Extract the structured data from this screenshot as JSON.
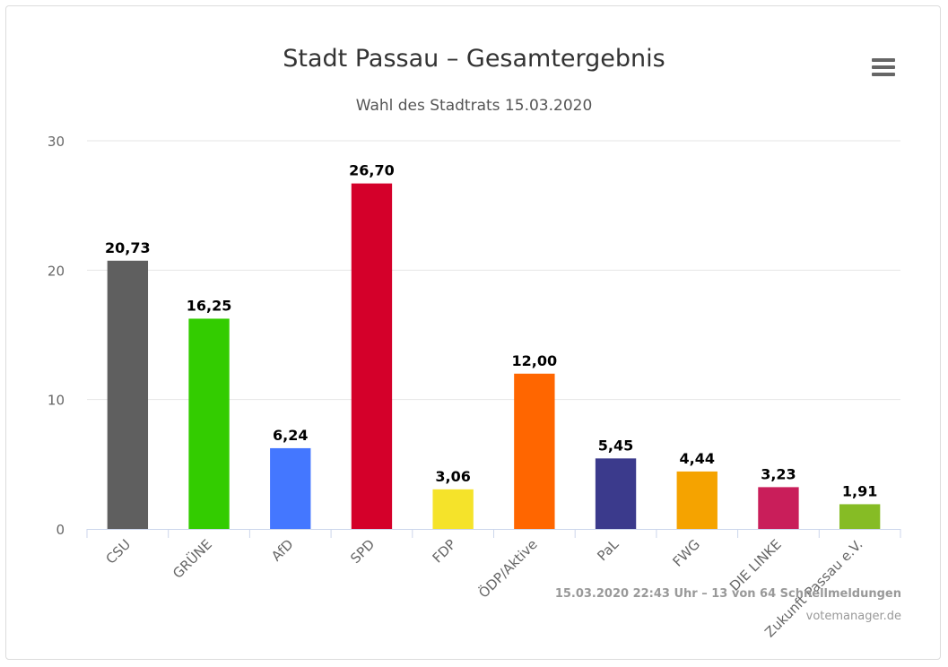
{
  "chart": {
    "title": "Stadt Passau – Gesamtergebnis",
    "subtitle": "Wahl des Stadtrats 15.03.2020",
    "menu_icon": "hamburger-menu-icon",
    "credits_line1": "15.03.2020 22:43 Uhr – 13 von 64 Schnellmeldungen",
    "credits_line2": "votemanager.de"
  },
  "chart_data": {
    "type": "bar",
    "title": "Stadt Passau – Gesamtergebnis",
    "subtitle": "Wahl des Stadtrats 15.03.2020",
    "xlabel": "",
    "ylabel": "",
    "ylim": [
      0,
      30
    ],
    "yticks": [
      0,
      10,
      20,
      30
    ],
    "grid": true,
    "legend": "none",
    "categories": [
      "CSU",
      "GRÜNE",
      "AfD",
      "SPD",
      "FDP",
      "ÖDP/Aktive",
      "PaL",
      "FWG",
      "DIE LINKE",
      "Zukunft Passau e.V."
    ],
    "values": [
      20.73,
      16.25,
      6.24,
      26.7,
      3.06,
      12.0,
      5.45,
      4.44,
      3.23,
      1.91
    ],
    "value_labels": [
      "20,73",
      "16,25",
      "6,24",
      "26,70",
      "3,06",
      "12,00",
      "5,45",
      "4,44",
      "3,23",
      "1,91"
    ],
    "colors": [
      "#5f5f5f",
      "#33cc00",
      "#4477ff",
      "#d4002a",
      "#f5e32a",
      "#ff6600",
      "#3b3a8c",
      "#f5a300",
      "#c91e5a",
      "#86bc25"
    ]
  }
}
